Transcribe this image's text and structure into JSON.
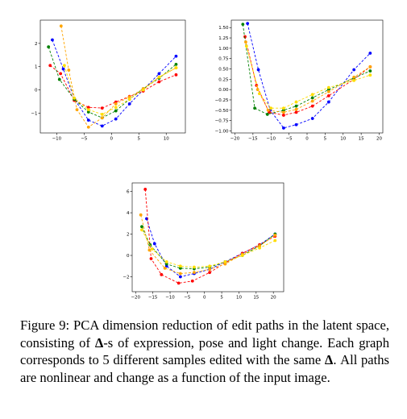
{
  "chart_data": [
    {
      "type": "line",
      "xlim": [
        -13,
        13.5
      ],
      "ylim": [
        -1.85,
        3.0
      ],
      "xticks": [
        -10,
        -5,
        0,
        5,
        10
      ],
      "yticks": [
        -1,
        0,
        1,
        2
      ],
      "xtick_labels": [
        "−10",
        "−5",
        "0",
        "5",
        "10"
      ],
      "ytick_labels": [
        "−1",
        "0",
        "1",
        "2"
      ],
      "series": [
        {
          "color": "#0000ff",
          "x": [
            -10.8,
            -8.8,
            -6.7,
            -4.2,
            -1.7,
            0.8,
            3.3,
            5.8,
            8.7,
            11.8
          ],
          "y": [
            2.15,
            0.9,
            -0.42,
            -1.3,
            -1.55,
            -1.25,
            -0.6,
            0.0,
            0.7,
            1.45
          ]
        },
        {
          "color": "#ff0000",
          "x": [
            -11.2,
            -9.3,
            -6.8,
            -4.2,
            -1.7,
            0.8,
            3.3,
            5.8,
            8.7,
            11.8
          ],
          "y": [
            1.05,
            0.7,
            -0.45,
            -0.75,
            -0.78,
            -0.52,
            -0.28,
            -0.05,
            0.35,
            0.65
          ]
        },
        {
          "color": "#008000",
          "x": [
            -11.5,
            -9.5,
            -6.8,
            -4.2,
            -1.7,
            0.8,
            3.3,
            5.8,
            8.7,
            11.8
          ],
          "y": [
            1.85,
            0.45,
            -0.4,
            -0.95,
            -1.2,
            -0.9,
            -0.4,
            0.05,
            0.5,
            1.1
          ]
        },
        {
          "color": "#ffa500",
          "x": [
            -9.2,
            -7.8,
            -6.3,
            -4.2,
            -1.7,
            0.8,
            3.3,
            5.8,
            8.7,
            11.8
          ],
          "y": [
            2.75,
            0.85,
            -0.85,
            -1.6,
            -1.2,
            -0.6,
            -0.3,
            0.05,
            0.55,
            0.95
          ]
        },
        {
          "color": "#ffdd00",
          "x": [
            -8.6,
            -6.8,
            -4.2,
            -1.7,
            0.8,
            3.3,
            5.8,
            8.7,
            11.8
          ],
          "y": [
            1.05,
            -0.35,
            -0.85,
            -1.05,
            -0.75,
            -0.4,
            0.0,
            0.55,
            0.95
          ]
        }
      ]
    },
    {
      "type": "line",
      "xlim": [
        -21,
        21
      ],
      "ylim": [
        -1.05,
        1.68
      ],
      "xticks": [
        -20,
        -15,
        -10,
        -5,
        0,
        5,
        10,
        15,
        20
      ],
      "yticks": [
        -1.0,
        -0.5,
        0.0,
        0.5,
        1.0,
        1.5
      ],
      "xtick_labels": [
        "−20",
        "−15",
        "−10",
        "−5",
        "0",
        "5",
        "10",
        "15",
        "20"
      ],
      "ytick_labels": [
        "−1.00",
        "−0.75",
        "−0.50",
        "−0.25",
        "0.00",
        "0.25",
        "0.50",
        "0.75",
        "1.00",
        "1.25",
        "1.50"
      ],
      "ytick_values": [
        -1.0,
        -0.75,
        -0.5,
        -0.25,
        0.0,
        0.25,
        0.5,
        0.75,
        1.0,
        1.25,
        1.5
      ],
      "series": [
        {
          "color": "#0000ff",
          "x": [
            -16.5,
            -13.5,
            -10.2,
            -6.5,
            -3.0,
            1.5,
            6.0,
            13.0,
            17.5
          ],
          "y": [
            1.6,
            0.48,
            -0.5,
            -0.93,
            -0.85,
            -0.7,
            -0.3,
            0.48,
            0.88
          ]
        },
        {
          "color": "#ff0000",
          "x": [
            -17.2,
            -14.0,
            -10.5,
            -6.5,
            -3.0,
            1.5,
            6.0,
            13.0,
            17.5
          ],
          "y": [
            1.28,
            0.1,
            -0.55,
            -0.62,
            -0.55,
            -0.4,
            -0.15,
            0.25,
            0.55
          ]
        },
        {
          "color": "#008000",
          "x": [
            -17.8,
            -14.5,
            -11.0,
            -6.5,
            -3.0,
            1.5,
            6.0,
            13.0,
            17.5
          ],
          "y": [
            1.58,
            -0.45,
            -0.6,
            -0.5,
            -0.4,
            -0.2,
            0.0,
            0.28,
            0.45
          ]
        },
        {
          "color": "#ffa500",
          "x": [
            -17.0,
            -13.7,
            -10.8,
            -6.5,
            -3.0,
            1.5,
            6.0,
            13.0,
            17.5
          ],
          "y": [
            1.15,
            0.0,
            -0.5,
            -0.55,
            -0.48,
            -0.28,
            -0.05,
            0.3,
            0.55
          ]
        },
        {
          "color": "#ffdd00",
          "x": [
            -16.8,
            -13.2,
            -10.0,
            -6.5,
            -3.0,
            1.5,
            6.0,
            13.0,
            17.5
          ],
          "y": [
            1.05,
            -0.1,
            -0.45,
            -0.45,
            -0.3,
            -0.12,
            0.05,
            0.22,
            0.35
          ]
        }
      ]
    },
    {
      "type": "line",
      "xlim": [
        -21,
        23
      ],
      "ylim": [
        -3.4,
        6.8
      ],
      "xticks": [
        -20,
        -15,
        -10,
        -5,
        0,
        5,
        10,
        15,
        20
      ],
      "yticks": [
        -2,
        0,
        2,
        4,
        6
      ],
      "xtick_labels": [
        "−20",
        "−15",
        "−10",
        "−5",
        "0",
        "5",
        "10",
        "15",
        "20"
      ],
      "ytick_labels": [
        "−2",
        "0",
        "2",
        "4",
        "6"
      ],
      "series": [
        {
          "color": "#0000ff",
          "x": [
            -16.8,
            -14.5,
            -11.0,
            -7.0,
            -3.0,
            1.5,
            6.0,
            11.0,
            16.0,
            20.5
          ],
          "y": [
            3.45,
            1.1,
            -1.0,
            -2.0,
            -1.7,
            -1.3,
            -0.6,
            0.2,
            1.0,
            2.0
          ]
        },
        {
          "color": "#ff0000",
          "x": [
            -17.2,
            -15.5,
            -12.5,
            -7.5,
            -3.5,
            1.5,
            6.0,
            11.0,
            16.0,
            20.5
          ],
          "y": [
            6.2,
            -0.3,
            -1.8,
            -2.6,
            -2.4,
            -1.6,
            -0.7,
            0.2,
            1.0,
            1.8
          ]
        },
        {
          "color": "#008000",
          "x": [
            -18.2,
            -15.8,
            -11.0,
            -7.0,
            -3.0,
            1.5,
            6.0,
            11.0,
            16.0,
            20.5
          ],
          "y": [
            2.7,
            1.0,
            -0.8,
            -1.2,
            -1.25,
            -1.1,
            -0.6,
            0.0,
            0.9,
            2.0
          ]
        },
        {
          "color": "#ffa500",
          "x": [
            -18.5,
            -16.0,
            -11.5,
            -7.0,
            -3.0,
            1.5,
            6.0,
            11.0,
            16.0,
            20.5
          ],
          "y": [
            3.8,
            0.5,
            -1.2,
            -1.7,
            -1.6,
            -1.3,
            -0.8,
            0.1,
            0.9,
            1.9
          ]
        },
        {
          "color": "#ffdd00",
          "x": [
            -18.2,
            -15.2,
            -11.0,
            -7.0,
            -3.0,
            1.5,
            6.0,
            11.0,
            16.0,
            20.5
          ],
          "y": [
            2.4,
            0.6,
            -0.6,
            -1.0,
            -1.1,
            -1.0,
            -0.6,
            0.0,
            0.7,
            1.4
          ]
        }
      ]
    }
  ],
  "caption": {
    "figure_label": "Figure 9:",
    "part1": " PCA dimension reduction of edit paths in the latent space, consisting of ",
    "delta1": "Δ",
    "part2": "-s of expression, pose and light change.  Each graph corresponds to 5 different samples edited with the same ",
    "delta2": "Δ",
    "part3": ". All paths are nonlinear and change as a function of the input image."
  }
}
